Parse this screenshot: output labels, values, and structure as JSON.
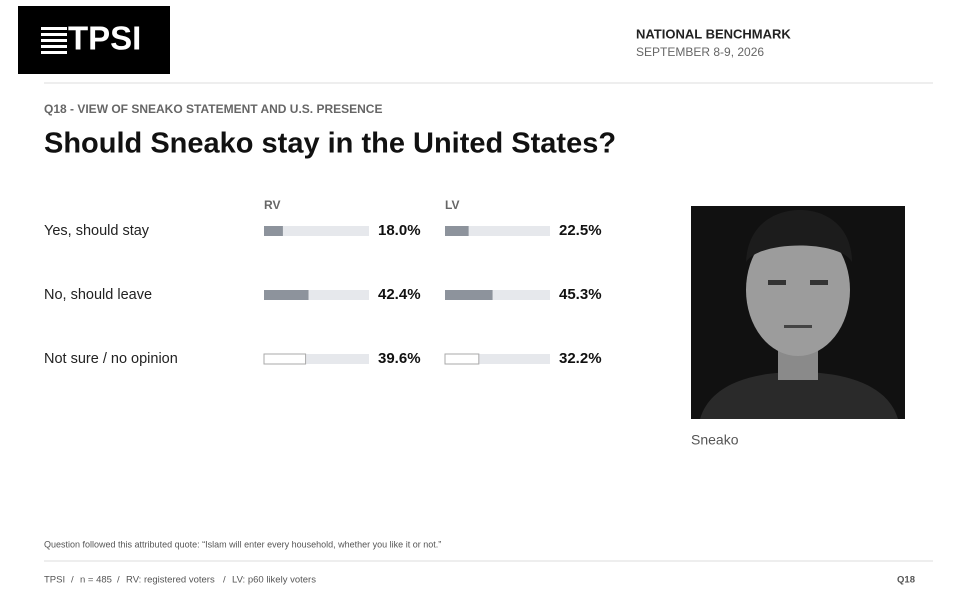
{
  "header": {
    "logo": "TPSI",
    "title": "NATIONAL BENCHMARK",
    "date": "SEPTEMBER 8-9, 2026"
  },
  "chart_data": {
    "type": "bar",
    "kicker": "Q18 - VIEW OF SNEAKO STATEMENT AND U.S. PRESENCE",
    "title": "Should Sneako stay in the United States?",
    "categories": [
      "Yes, should stay",
      "No, should leave",
      "Not sure / no opinion"
    ],
    "bar_colors": [
      "#8d939c",
      "#8d939c",
      "#ffffff"
    ],
    "series": [
      {
        "name": "RV",
        "values": [
          18.0,
          42.4,
          39.6
        ],
        "value_labels": [
          "18.0%",
          "42.4%",
          "39.6%"
        ]
      },
      {
        "name": "LV",
        "values": [
          22.5,
          45.3,
          32.2
        ],
        "value_labels": [
          "22.5%",
          "45.3%",
          "32.2%"
        ]
      }
    ],
    "xlim": [
      0,
      100
    ]
  },
  "photo": {
    "caption": "Sneako"
  },
  "footnote": "Question followed this attributed quote: “Islam will enter every household, whether you like it or not.”",
  "footer": {
    "source": "TPSI",
    "n": "n = 485",
    "rv": "RV: registered voters",
    "lv": "LV: p60 likely voters",
    "page": "Q18"
  }
}
